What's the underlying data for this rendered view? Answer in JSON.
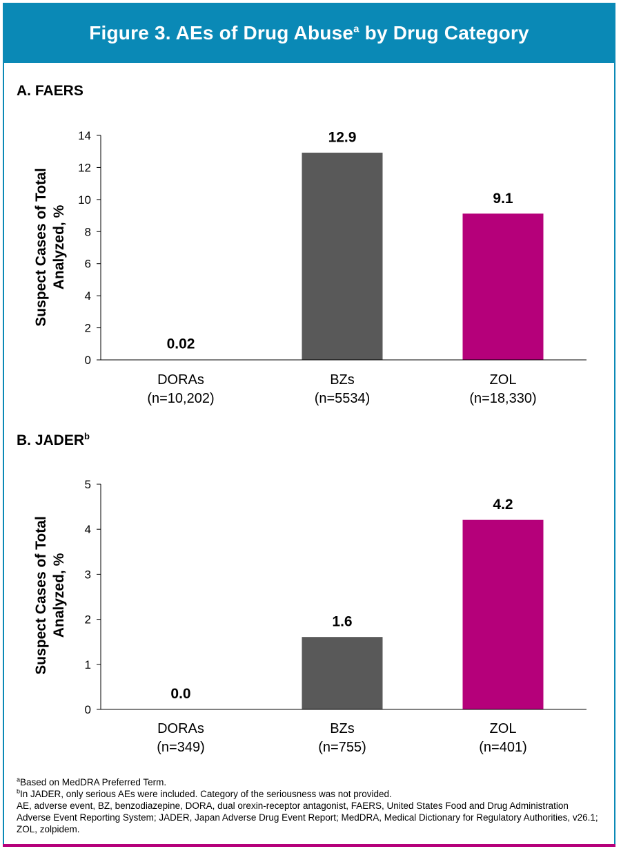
{
  "header": {
    "title_pre": "Figure 3. AEs of Drug Abuse",
    "title_sup": "a",
    "title_post": " by Drug Category",
    "bg_color": "#0a89b6"
  },
  "panels": [
    {
      "label": "A. FAERS",
      "label_sup": ""
    },
    {
      "label": "B. JADER",
      "label_sup": "b"
    }
  ],
  "chart_data": [
    {
      "type": "bar",
      "title": "A. FAERS",
      "ylabel": "Suspect Cases of Total Analyzed, %",
      "ylabel_lines": [
        "Suspect Cases of Total",
        "Analyzed, %"
      ],
      "ylim": [
        0,
        14
      ],
      "yticks": [
        0,
        2,
        4,
        6,
        8,
        10,
        12,
        14
      ],
      "categories": [
        "DORAs",
        "BZs",
        "ZOL"
      ],
      "category_sublabels": [
        "(n=10,202)",
        "(n=5534)",
        "(n=18,330)"
      ],
      "values": [
        0.02,
        12.9,
        9.1
      ],
      "data_labels": [
        "0.02",
        "12.9",
        "9.1"
      ],
      "colors": [
        "#ffffff",
        "#595959",
        "#b5007a"
      ],
      "grid": false
    },
    {
      "type": "bar",
      "title": "B. JADER",
      "ylabel": "Suspect Cases of Total Analyzed, %",
      "ylabel_lines": [
        "Suspect Cases of Total",
        "Analyzed, %"
      ],
      "ylim": [
        0,
        5
      ],
      "yticks": [
        0,
        1,
        2,
        3,
        4,
        5
      ],
      "categories": [
        "DORAs",
        "BZs",
        "ZOL"
      ],
      "category_sublabels": [
        "(n=349)",
        "(n=755)",
        "(n=401)"
      ],
      "values": [
        0.0,
        1.6,
        4.2
      ],
      "data_labels": [
        "0.0",
        "1.6",
        "4.2"
      ],
      "colors": [
        "#ffffff",
        "#595959",
        "#b5007a"
      ],
      "grid": false
    }
  ],
  "footnotes": {
    "a_sup": "a",
    "a_text": "Based on MedDRA Preferred Term.",
    "b_sup": "b",
    "b_text": "In JADER, only serious AEs were included. Category of the seriousness was not provided.",
    "abbrev": "AE, adverse event, BZ, benzodiazepine, DORA, dual orexin-receptor antagonist, FAERS, United States Food and Drug Administration Adverse Event Reporting System; JADER, Japan Adverse Drug Event Report; MedDRA, Medical Dictionary for Regulatory Authorities, v26.1; ZOL, zolpidem."
  }
}
